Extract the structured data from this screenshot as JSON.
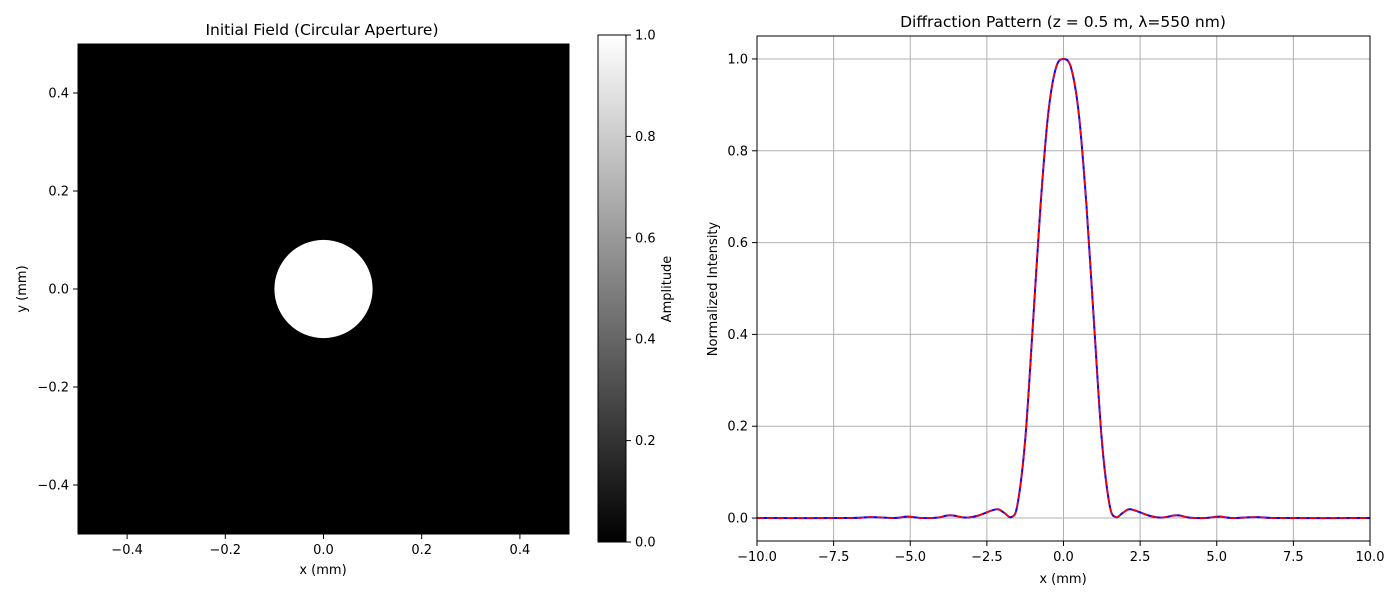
{
  "chart_data": [
    {
      "type": "heatmap",
      "title": "Initial Field (Circular Aperture)",
      "xlabel": "x (mm)",
      "ylabel": "y (mm)",
      "xlim": [
        -0.5,
        0.5
      ],
      "ylim": [
        -0.5,
        0.5
      ],
      "xticks": [
        "−0.4",
        "−0.2",
        "0.0",
        "0.2",
        "0.4"
      ],
      "xtick_values": [
        -0.4,
        -0.2,
        0.0,
        0.2,
        0.4
      ],
      "yticks": [
        "−0.4",
        "−0.2",
        "0.0",
        "0.2",
        "0.4"
      ],
      "ytick_values": [
        -0.4,
        -0.2,
        0.0,
        0.2,
        0.4
      ],
      "aperture": {
        "center_x": 0.0,
        "center_y": 0.0,
        "radius": 0.1,
        "amplitude_inside": 1.0,
        "amplitude_outside": 0.0
      },
      "colormap": "gray",
      "colorbar": {
        "label": "Amplitude",
        "range": [
          0.0,
          1.0
        ],
        "ticks": [
          "0.0",
          "0.2",
          "0.4",
          "0.6",
          "0.8",
          "1.0"
        ],
        "tick_values": [
          0.0,
          0.2,
          0.4,
          0.6,
          0.8,
          1.0
        ]
      }
    },
    {
      "type": "line",
      "title": "Diffraction Pattern (z = 0.5 m, λ=550 nm)",
      "xlabel": "x (mm)",
      "ylabel": "Normalized Intensity",
      "xlim": [
        -10,
        10
      ],
      "ylim": [
        -0.05,
        1.05
      ],
      "xticks": [
        "−10.0",
        "−7.5",
        "−5.0",
        "−2.5",
        "0.0",
        "2.5",
        "5.0",
        "7.5",
        "10.0"
      ],
      "xtick_values": [
        -10,
        -7.5,
        -5,
        -2.5,
        0,
        2.5,
        5,
        7.5,
        10
      ],
      "yticks": [
        "0.0",
        "0.2",
        "0.4",
        "0.6",
        "0.8",
        "1.0"
      ],
      "ytick_values": [
        0.0,
        0.2,
        0.4,
        0.6,
        0.8,
        1.0
      ],
      "grid": true,
      "series": [
        {
          "color": "#0000ff",
          "style": "solid",
          "x": [
            -10,
            -7,
            -6.3,
            -5.5,
            -5.1,
            -4.6,
            -4.1,
            -3.7,
            -3.2,
            -2.8,
            -2.2,
            -1.95,
            -1.7,
            -1.5,
            -1.25,
            -1.0,
            -0.75,
            -0.5,
            -0.25,
            0,
            0.25,
            0.5,
            0.75,
            1.0,
            1.25,
            1.5,
            1.7,
            1.95,
            2.2,
            2.8,
            3.2,
            3.7,
            4.1,
            4.6,
            5.1,
            5.5,
            6.3,
            7,
            10
          ],
          "y": [
            0,
            0,
            0.002,
            0,
            0.003,
            0,
            0.001,
            0.006,
            0.001,
            0.005,
            0.019,
            0.012,
            0.002,
            0.03,
            0.17,
            0.42,
            0.68,
            0.88,
            0.98,
            1.0,
            0.98,
            0.88,
            0.68,
            0.42,
            0.17,
            0.03,
            0.002,
            0.012,
            0.019,
            0.005,
            0.001,
            0.006,
            0.001,
            0,
            0.003,
            0,
            0.002,
            0,
            0
          ]
        },
        {
          "color": "#ff0000",
          "style": "dashed",
          "x": [
            -10,
            -7,
            -6.3,
            -5.5,
            -5.1,
            -4.6,
            -4.1,
            -3.7,
            -3.2,
            -2.8,
            -2.2,
            -1.95,
            -1.7,
            -1.5,
            -1.25,
            -1.0,
            -0.75,
            -0.5,
            -0.25,
            0,
            0.25,
            0.5,
            0.75,
            1.0,
            1.25,
            1.5,
            1.7,
            1.95,
            2.2,
            2.8,
            3.2,
            3.7,
            4.1,
            4.6,
            5.1,
            5.5,
            6.3,
            7,
            10
          ],
          "y": [
            0,
            0,
            0.002,
            0,
            0.003,
            0,
            0.001,
            0.006,
            0.001,
            0.005,
            0.019,
            0.012,
            0.002,
            0.03,
            0.17,
            0.42,
            0.68,
            0.88,
            0.98,
            1.0,
            0.98,
            0.88,
            0.68,
            0.42,
            0.17,
            0.03,
            0.002,
            0.012,
            0.019,
            0.005,
            0.001,
            0.006,
            0.001,
            0,
            0.003,
            0,
            0.002,
            0,
            0
          ]
        }
      ]
    }
  ]
}
